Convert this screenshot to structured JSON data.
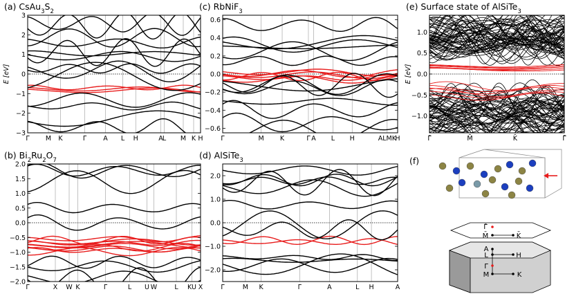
{
  "panels": [
    {
      "id": "a",
      "label": "(a)",
      "title_main": "CsAu",
      "title_parts": [
        [
          "CsAu",
          ""
        ],
        [
          "3",
          "sub"
        ],
        [
          "S",
          ""
        ],
        [
          "2",
          "sub"
        ]
      ],
      "ylabel": "E [eV]",
      "yticks": [
        "3",
        "2",
        "1",
        "0",
        "−1",
        "−2",
        "−3"
      ],
      "ytick_values": [
        3,
        2,
        1,
        0,
        -1,
        -2,
        -3
      ],
      "ylim": [
        -3,
        3
      ],
      "kpoints": [
        "Γ",
        "M",
        "K",
        "Γ",
        "A",
        "L",
        "H",
        "A",
        "L",
        "M",
        "K",
        "H"
      ]
    },
    {
      "id": "b",
      "label": "(b)",
      "title_parts": [
        [
          "Bi",
          ""
        ],
        [
          "2",
          "sub"
        ],
        [
          "Ru",
          ""
        ],
        [
          "2",
          "sub"
        ],
        [
          "O",
          ""
        ],
        [
          "7",
          "sub"
        ]
      ],
      "yticks": [
        "2.0",
        "1.5",
        "1.0",
        "0.5",
        "0.0",
        "−0.5",
        "−1.0",
        "−1.5",
        "−2.0"
      ],
      "ytick_values": [
        2.0,
        1.5,
        1.0,
        0.5,
        0.0,
        -0.5,
        -1.0,
        -1.5,
        -2.0
      ],
      "ylim": [
        -2,
        2
      ],
      "kpoints": [
        "Γ",
        "X",
        "W",
        "K",
        "Γ",
        "L",
        "U",
        "W",
        "L",
        "KU",
        "X"
      ]
    },
    {
      "id": "c",
      "label": "(c)",
      "title_parts": [
        [
          "RbNiF",
          ""
        ],
        [
          "3",
          "sub"
        ]
      ],
      "yticks": [
        "0.6",
        "0.4",
        "0.2",
        "0.0",
        "−0.2",
        "−0.4",
        "−0.6"
      ],
      "ytick_values": [
        0.6,
        0.4,
        0.2,
        0.0,
        -0.2,
        -0.4,
        -0.6
      ],
      "ylim": [
        -0.65,
        0.65
      ],
      "kpoints": [
        "Γ",
        "M",
        "K",
        "Γ",
        "A",
        "L",
        "H",
        "ALMK",
        "H"
      ]
    },
    {
      "id": "d",
      "label": "(d)",
      "title_parts": [
        [
          "AlSiTe",
          ""
        ],
        [
          "3",
          "sub"
        ]
      ],
      "yticks": [
        "2.0",
        "1.0",
        "0.0",
        "−1.0",
        "−2.0"
      ],
      "ytick_values": [
        2.0,
        1.0,
        0.0,
        -1.0,
        -2.0
      ],
      "ylim": [
        -2.5,
        2.5
      ],
      "kpoints": [
        "Γ",
        "M",
        "K",
        "Γ",
        "A",
        "L",
        "H",
        "A"
      ]
    },
    {
      "id": "e",
      "label": "(e)",
      "title": "Surface state of AlSiTe",
      "title_sub": "3",
      "ylabel": "E [eV]",
      "yticks": [
        "1.0",
        "0.5",
        "0.0",
        "−0.5",
        "−1.0"
      ],
      "ytick_values": [
        1.0,
        0.5,
        0.0,
        -0.5,
        -1.0
      ],
      "ylim": [
        -1.4,
        1.4
      ],
      "kpoints": [
        "Γ̄",
        "M̄",
        "K̄",
        "Γ̄"
      ]
    },
    {
      "id": "f",
      "label": "(f)",
      "surface_bz_labels": [
        "Γ̄",
        "M̄",
        "K̄"
      ],
      "bulk_bz_labels": [
        "A",
        "L",
        "H",
        "Γ",
        "M",
        "K"
      ]
    }
  ],
  "colors": {
    "band": "#000000",
    "flat_band": "#e81c1c",
    "atom_blue": "#1c3fbf",
    "atom_olive": "#8c8444",
    "atom_grey": "#7a9aa8",
    "arrow": "#e81c1c"
  }
}
